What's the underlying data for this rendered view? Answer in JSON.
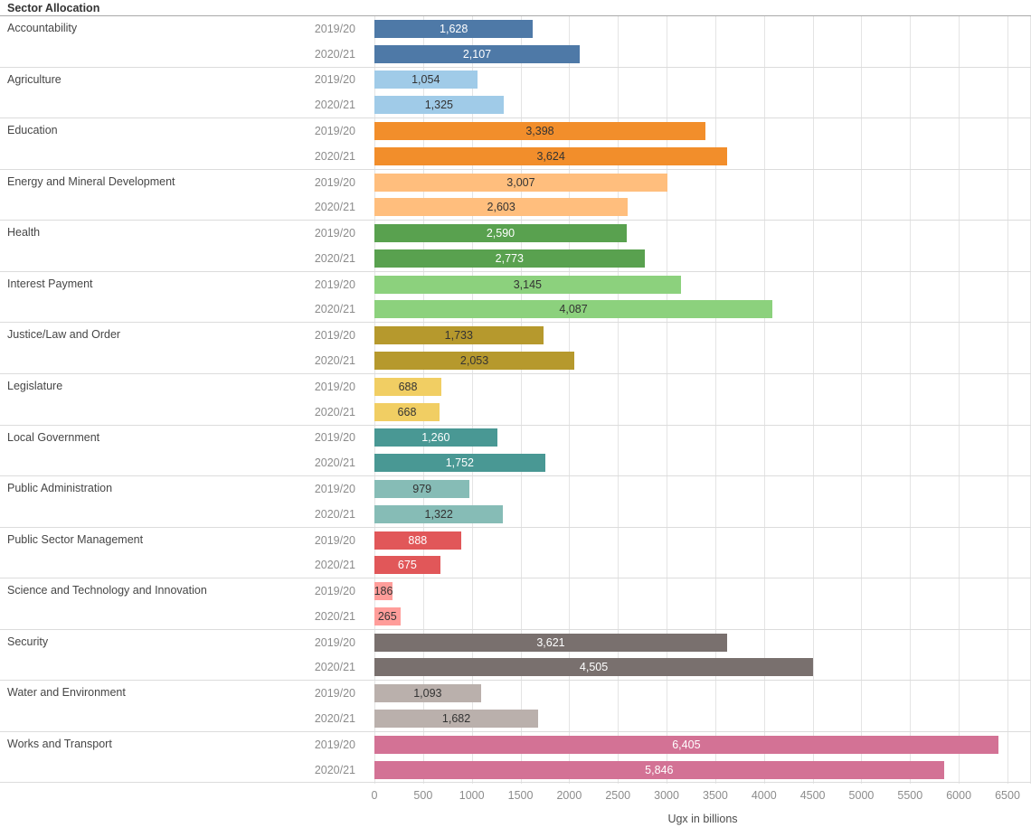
{
  "chart_data": {
    "type": "bar",
    "orientation": "horizontal",
    "title": "Sector Allocation",
    "xlabel": "Ugx in billions",
    "x_ticks": [
      0,
      500,
      1000,
      1500,
      2000,
      2500,
      3000,
      3500,
      4000,
      4500,
      5000,
      5500,
      6000,
      6500
    ],
    "xlim": [
      0,
      6741
    ],
    "x_max_tick": 6500,
    "grid": "vertical",
    "legend_position": "none",
    "year_categories": [
      "2019/20",
      "2020/21"
    ],
    "sectors": [
      {
        "name": "Accountability",
        "color": "#4e79a7",
        "value_label_color": "#ffffff",
        "values": [
          1628,
          2107
        ],
        "value_labels": [
          "1,628",
          "2,107"
        ]
      },
      {
        "name": "Agriculture",
        "color": "#a0cbe8",
        "value_label_color": "#333333",
        "values": [
          1054,
          1325
        ],
        "value_labels": [
          "1,054",
          "1,325"
        ]
      },
      {
        "name": "Education",
        "color": "#f28e2b",
        "value_label_color": "#333333",
        "values": [
          3398,
          3624
        ],
        "value_labels": [
          "3,398",
          "3,624"
        ]
      },
      {
        "name": "Energy and Mineral Development",
        "color": "#ffbe7d",
        "value_label_color": "#333333",
        "values": [
          3007,
          2603
        ],
        "value_labels": [
          "3,007",
          "2,603"
        ]
      },
      {
        "name": "Health",
        "color": "#59a14f",
        "value_label_color": "#ffffff",
        "values": [
          2590,
          2773
        ],
        "value_labels": [
          "2,590",
          "2,773"
        ]
      },
      {
        "name": "Interest Payment",
        "color": "#8cd17d",
        "value_label_color": "#333333",
        "values": [
          3145,
          4087
        ],
        "value_labels": [
          "3,145",
          "4,087"
        ]
      },
      {
        "name": "Justice/Law and Order",
        "color": "#b6992d",
        "value_label_color": "#333333",
        "values": [
          1733,
          2053
        ],
        "value_labels": [
          "1,733",
          "2,053"
        ]
      },
      {
        "name": "Legislature",
        "color": "#f1ce63",
        "value_label_color": "#333333",
        "values": [
          688,
          668
        ],
        "value_labels": [
          "688",
          "668"
        ]
      },
      {
        "name": "Local Government",
        "color": "#499894",
        "value_label_color": "#ffffff",
        "values": [
          1260,
          1752
        ],
        "value_labels": [
          "1,260",
          "1,752"
        ]
      },
      {
        "name": "Public Administration",
        "color": "#86bcb6",
        "value_label_color": "#333333",
        "values": [
          979,
          1322
        ],
        "value_labels": [
          "979",
          "1,322"
        ]
      },
      {
        "name": "Public Sector Management",
        "color": "#e15759",
        "value_label_color": "#ffffff",
        "values": [
          888,
          675
        ],
        "value_labels": [
          "888",
          "675"
        ]
      },
      {
        "name": "Science and Technology and Innovation",
        "color": "#ff9d9a",
        "value_label_color": "#333333",
        "values": [
          186,
          265
        ],
        "value_labels": [
          "186",
          "265"
        ]
      },
      {
        "name": "Security",
        "color": "#79706e",
        "value_label_color": "#ffffff",
        "values": [
          3621,
          4505
        ],
        "value_labels": [
          "3,621",
          "4,505"
        ]
      },
      {
        "name": "Water and Environment",
        "color": "#bab0ac",
        "value_label_color": "#333333",
        "values": [
          1093,
          1682
        ],
        "value_labels": [
          "1,093",
          "1,682"
        ]
      },
      {
        "name": "Works and Transport",
        "color": "#d37295",
        "value_label_color": "#ffffff",
        "values": [
          6405,
          5846
        ],
        "value_labels": [
          "6,405",
          "5,846"
        ]
      }
    ]
  },
  "colors": {
    "gridline": "#e4e4e4",
    "row_separator": "#dcdcdc",
    "header_rule": "#a9a9a9",
    "title_text": "#333333",
    "sector_label_text": "#464646",
    "year_label_text": "#8c8c8c",
    "tick_label_text": "#8c8c8c",
    "axis_title_text": "#4c4c4c"
  }
}
